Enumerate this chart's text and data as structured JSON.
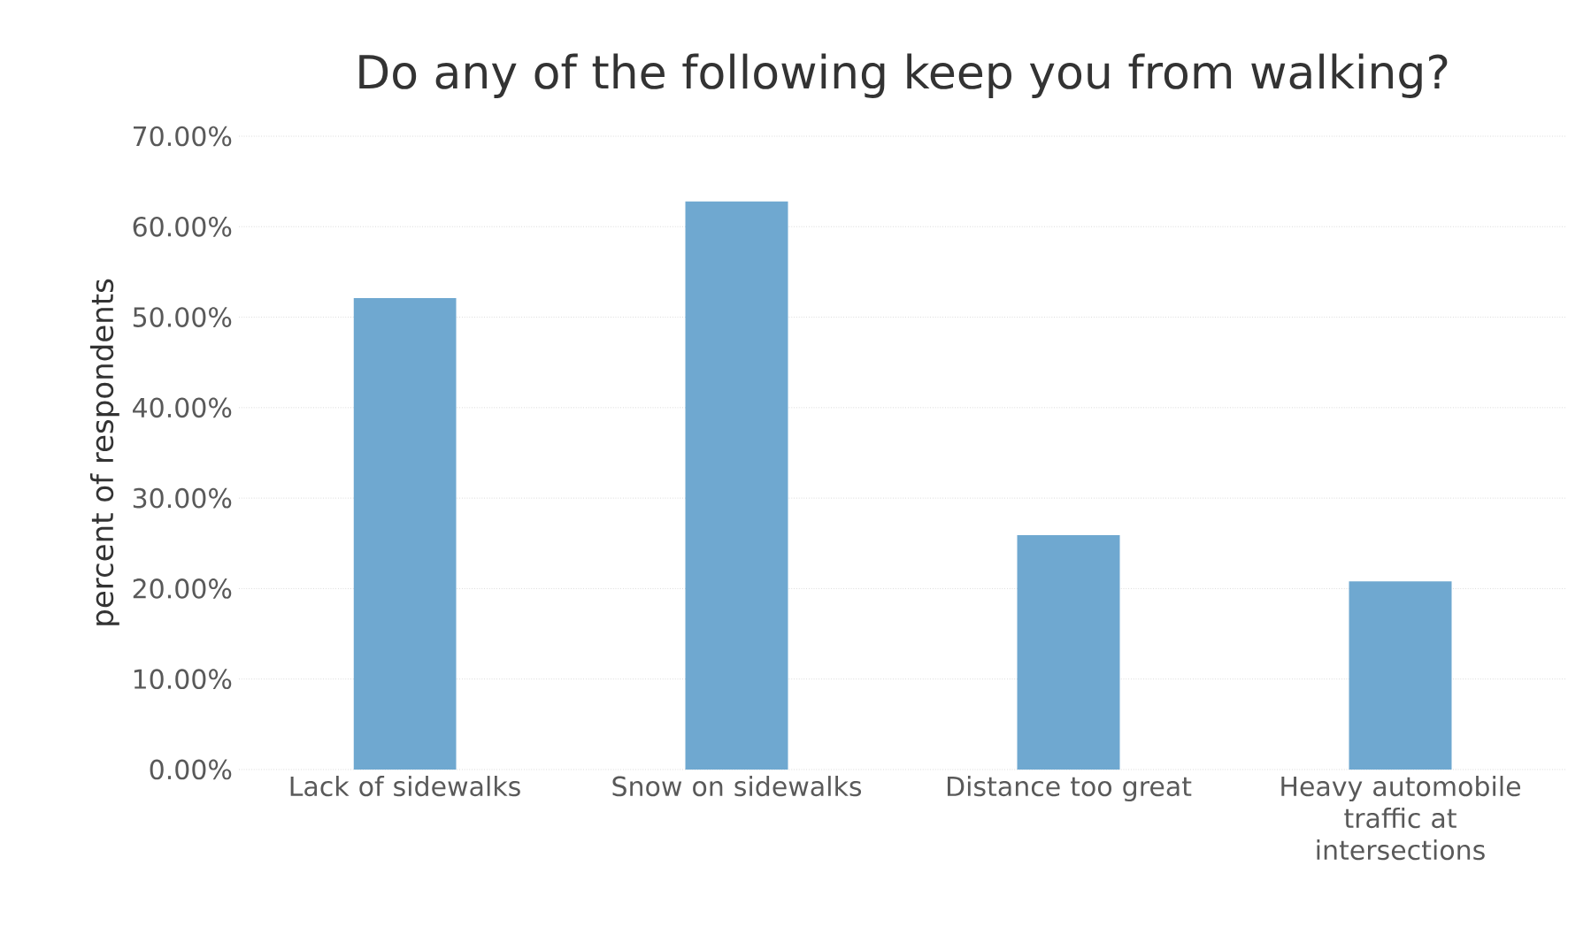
{
  "chart_data": {
    "type": "bar",
    "title": "Do any of the following keep you from walking?",
    "ylabel": "percent of respondents",
    "categories": [
      "Lack of sidewalks",
      "Snow on sidewalks",
      "Distance too great",
      "Heavy automobile traffic at intersections"
    ],
    "values": [
      52.1,
      62.8,
      25.9,
      20.8
    ],
    "color": "#6fa8d0",
    "ylim": [
      0,
      70
    ],
    "yticks": [
      {
        "value": 0,
        "label": "0.00%"
      },
      {
        "value": 10,
        "label": "10.00%"
      },
      {
        "value": 20,
        "label": "20.00%"
      },
      {
        "value": 30,
        "label": "30.00%"
      },
      {
        "value": 40,
        "label": "40.00%"
      },
      {
        "value": 50,
        "label": "50.00%"
      },
      {
        "value": 60,
        "label": "60.00%"
      },
      {
        "value": 70,
        "label": "70.00%"
      }
    ],
    "grid": "y"
  }
}
